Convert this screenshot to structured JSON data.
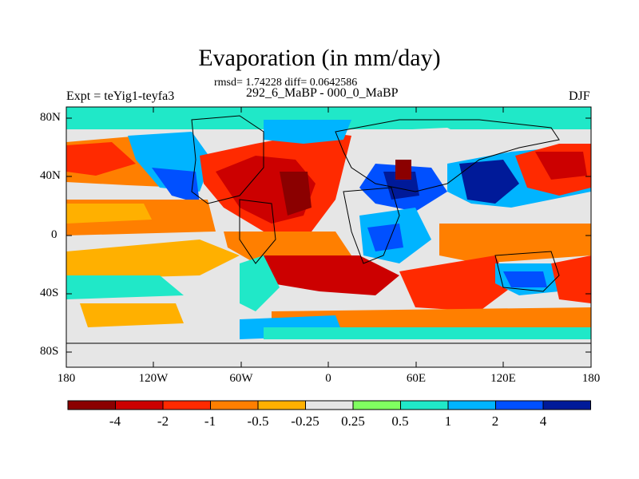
{
  "figure": {
    "title": "Evaporation (in mm/day)",
    "stats": "rmsd= 1.74228 diff= 0.0642586",
    "period": "292_6_MaBP - 000_0_MaBP",
    "experiment": "Expt = teYig1-teyfa3",
    "season": "DJF"
  },
  "axes": {
    "y_ticks": [
      "80N",
      "40N",
      "0",
      "40S",
      "80S"
    ],
    "x_ticks": [
      "180",
      "120W",
      "60W",
      "0",
      "60E",
      "120E",
      "180"
    ]
  },
  "colorbar": {
    "labels": [
      "-4",
      "-2",
      "-1",
      "-0.5",
      "-0.25",
      "0.25",
      "0.5",
      "1",
      "2",
      "4"
    ],
    "colors": [
      "#8b0000",
      "#cc0000",
      "#ff2a00",
      "#ff7f00",
      "#ffb000",
      "#e6e6e6",
      "#80ff60",
      "#20e8c8",
      "#00b4ff",
      "#0050ff",
      "#001a99"
    ]
  }
}
